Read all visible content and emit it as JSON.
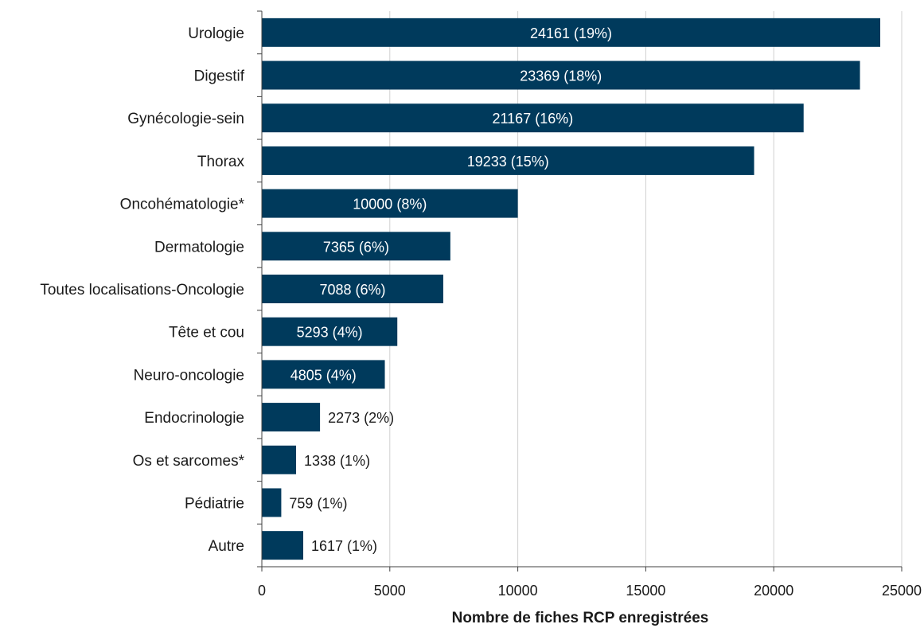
{
  "chart_data": {
    "type": "bar",
    "orientation": "horizontal",
    "categories": [
      "Urologie",
      "Digestif",
      "Gynécologie-sein",
      "Thorax",
      "Oncohématologie*",
      "Dermatologie",
      "Toutes localisations-Oncologie",
      "Tête et cou",
      "Neuro-oncologie",
      "Endocrinologie",
      "Os et sarcomes*",
      "Pédiatrie",
      "Autre"
    ],
    "values": [
      24161,
      23369,
      21167,
      19233,
      10000,
      7365,
      7088,
      5293,
      4805,
      2273,
      1338,
      759,
      1617
    ],
    "data_labels": [
      "24161 (19%)",
      "23369 (18%)",
      "21167 (16%)",
      "19233 (15%)",
      "10000 (8%)",
      "7365 (6%)",
      "7088 (6%)",
      "5293 (4%)",
      "4805 (4%)",
      "2273 (2%)",
      "1338 (1%)",
      "759 (1%)",
      "1617 (1%)"
    ],
    "xlabel": "Nombre de fiches RCP enregistrées",
    "ylabel": "",
    "xlim": [
      0,
      25000
    ],
    "xticks": [
      0,
      5000,
      10000,
      15000,
      20000,
      25000
    ],
    "xtick_labels": [
      "0",
      "5000",
      "10000",
      "15000",
      "20000",
      "25000"
    ],
    "grid": "vertical",
    "legend": "none",
    "bar_color": "#003a5c",
    "label_color_inside": "#ffffff",
    "label_color_outside": "#1a1a1a"
  }
}
